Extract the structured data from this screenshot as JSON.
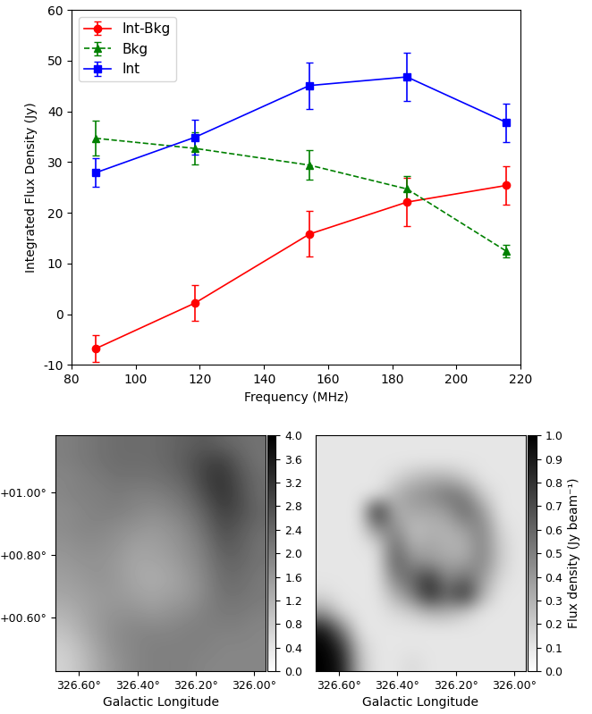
{
  "chart_data": [
    {
      "type": "line",
      "x_label": "Frequency (MHz)",
      "y_label": "Integrated Flux Density (Jy)",
      "x": [
        87.5,
        118.5,
        154.2,
        184.6,
        215.7
      ],
      "series": [
        {
          "name": "Int-Bkg",
          "color": "red",
          "marker": "o",
          "line_style": "solid",
          "values": [
            -6.8,
            2.2,
            15.8,
            22.1,
            25.4
          ],
          "errors": [
            2.7,
            3.5,
            4.5,
            4.8,
            3.8
          ]
        },
        {
          "name": "Bkg",
          "color": "green",
          "marker": "^",
          "line_style": "dashed",
          "values": [
            34.7,
            32.7,
            29.4,
            24.7,
            12.4
          ],
          "errors": [
            3.4,
            3.2,
            2.9,
            2.5,
            1.2
          ]
        },
        {
          "name": "Int",
          "color": "blue",
          "marker": "s",
          "line_style": "solid",
          "values": [
            27.9,
            34.9,
            45.1,
            46.8,
            37.8
          ],
          "errors": [
            2.8,
            3.5,
            4.6,
            4.7,
            3.8
          ]
        }
      ],
      "xlim": [
        80,
        220
      ],
      "xticks": [
        80,
        100,
        120,
        140,
        160,
        180,
        200,
        220
      ],
      "ylim": [
        -10,
        60
      ],
      "yticks": [
        -10,
        0,
        10,
        20,
        30,
        40,
        50,
        60
      ],
      "legend": "upper left"
    },
    {
      "type": "heatmap",
      "x_label": "Galactic Longitude",
      "xlim": [
        326.68,
        325.96
      ],
      "xticks": [
        {
          "value": 326.6,
          "label": "326.60°"
        },
        {
          "value": 326.4,
          "label": "326.40°"
        },
        {
          "value": 326.2,
          "label": "326.20°"
        },
        {
          "value": 326.0,
          "label": "326.00°"
        }
      ],
      "ylim": [
        0.43,
        1.18
      ],
      "yticks": [
        {
          "value": 0.6,
          "label": "+00.60°"
        },
        {
          "value": 0.8,
          "label": "+00.80°"
        },
        {
          "value": 1.0,
          "label": "+01.00°"
        }
      ],
      "colorbar_range": [
        0.0,
        4.0
      ],
      "colorbar_ticks": [
        0.0,
        0.4,
        0.8,
        1.2,
        1.6,
        2.0,
        2.4,
        2.8,
        3.2,
        3.6,
        4.0
      ],
      "cells": [
        [
          2.0,
          2.1,
          2.2,
          2.3,
          2.3,
          2.3,
          2.4,
          2.5,
          2.6,
          2.4,
          2.3,
          2.2
        ],
        [
          2.0,
          2.1,
          2.2,
          2.3,
          2.3,
          2.3,
          2.4,
          2.6,
          2.9,
          3.0,
          2.5,
          2.2
        ],
        [
          1.9,
          2.0,
          2.1,
          2.2,
          2.2,
          2.2,
          2.3,
          2.5,
          3.0,
          3.2,
          2.7,
          2.3
        ],
        [
          1.9,
          2.0,
          2.0,
          2.1,
          2.0,
          2.0,
          2.1,
          2.3,
          2.8,
          3.2,
          2.8,
          2.3
        ],
        [
          1.8,
          1.9,
          2.0,
          2.0,
          1.9,
          1.8,
          1.9,
          2.1,
          2.5,
          3.0,
          2.8,
          2.4
        ],
        [
          1.8,
          1.9,
          1.9,
          1.8,
          1.7,
          1.6,
          1.7,
          1.9,
          2.3,
          2.8,
          2.6,
          2.3
        ],
        [
          1.7,
          1.8,
          1.8,
          1.7,
          1.5,
          1.5,
          1.6,
          1.8,
          2.1,
          2.6,
          2.5,
          2.2
        ],
        [
          1.6,
          1.7,
          1.7,
          1.6,
          1.4,
          1.4,
          1.5,
          1.7,
          2.0,
          2.4,
          2.4,
          2.2
        ],
        [
          1.5,
          1.6,
          1.7,
          1.6,
          1.4,
          1.3,
          1.4,
          1.6,
          1.9,
          2.3,
          2.3,
          2.1
        ],
        [
          1.4,
          1.5,
          1.6,
          1.6,
          1.5,
          1.4,
          1.5,
          1.6,
          1.9,
          2.2,
          2.2,
          2.1
        ],
        [
          1.2,
          1.4,
          1.6,
          1.7,
          1.7,
          1.6,
          1.7,
          1.8,
          2.0,
          2.1,
          2.1,
          2.0
        ],
        [
          1.0,
          1.3,
          1.6,
          1.8,
          1.9,
          1.9,
          1.9,
          2.0,
          2.0,
          2.0,
          2.0,
          1.9
        ],
        [
          0.8,
          1.1,
          1.5,
          1.8,
          1.9,
          2.0,
          2.0,
          2.0,
          2.0,
          1.9,
          1.9,
          1.9
        ],
        [
          0.7,
          1.0,
          1.4,
          1.7,
          1.9,
          2.0,
          2.0,
          2.0,
          1.9,
          1.9,
          1.9,
          1.9
        ]
      ]
    },
    {
      "type": "heatmap",
      "x_label": "Galactic Longitude",
      "tick_labels": "x",
      "xlim": [
        326.68,
        325.96
      ],
      "xticks": [
        {
          "value": 326.6,
          "label": "326.60°"
        },
        {
          "value": 326.4,
          "label": "326.40°"
        },
        {
          "value": 326.2,
          "label": "326.20°"
        },
        {
          "value": 326.0,
          "label": "326.00°"
        }
      ],
      "ylim": [
        0.43,
        1.18
      ],
      "colorbar_label": "Flux density (Jy beam⁻¹)",
      "colorbar_range": [
        0.0,
        1.0
      ],
      "colorbar_ticks": [
        0.0,
        0.1,
        0.2,
        0.3,
        0.4,
        0.5,
        0.6,
        0.7,
        0.8,
        0.9,
        1.0
      ],
      "cells": [
        [
          0.1,
          0.1,
          0.1,
          0.1,
          0.1,
          0.1,
          0.1,
          0.1,
          0.1,
          0.1,
          0.1,
          0.1
        ],
        [
          0.1,
          0.1,
          0.1,
          0.1,
          0.1,
          0.1,
          0.1,
          0.1,
          0.1,
          0.1,
          0.1,
          0.1
        ],
        [
          0.1,
          0.1,
          0.1,
          0.1,
          0.15,
          0.25,
          0.3,
          0.3,
          0.2,
          0.1,
          0.1,
          0.1
        ],
        [
          0.1,
          0.1,
          0.1,
          0.1,
          0.3,
          0.4,
          0.45,
          0.55,
          0.5,
          0.2,
          0.1,
          0.1
        ],
        [
          0.1,
          0.1,
          0.1,
          0.9,
          0.3,
          0.35,
          0.35,
          0.4,
          0.6,
          0.4,
          0.1,
          0.1
        ],
        [
          0.1,
          0.1,
          0.1,
          0.5,
          0.45,
          0.25,
          0.3,
          0.3,
          0.4,
          0.5,
          0.15,
          0.1
        ],
        [
          0.1,
          0.1,
          0.1,
          0.15,
          0.6,
          0.3,
          0.35,
          0.3,
          0.3,
          0.5,
          0.2,
          0.1
        ],
        [
          0.1,
          0.1,
          0.1,
          0.1,
          0.65,
          0.45,
          0.4,
          0.35,
          0.35,
          0.5,
          0.2,
          0.1
        ],
        [
          0.1,
          0.1,
          0.1,
          0.1,
          0.5,
          0.6,
          0.8,
          0.45,
          0.6,
          0.4,
          0.15,
          0.1
        ],
        [
          0.15,
          0.1,
          0.1,
          0.1,
          0.3,
          0.5,
          0.85,
          0.6,
          0.85,
          0.3,
          0.1,
          0.1
        ],
        [
          0.4,
          0.15,
          0.1,
          0.1,
          0.15,
          0.2,
          0.3,
          0.3,
          0.2,
          0.1,
          0.1,
          0.1
        ],
        [
          0.9,
          0.5,
          0.1,
          0.1,
          0.1,
          0.1,
          0.1,
          0.1,
          0.1,
          0.1,
          0.1,
          0.1
        ],
        [
          1.0,
          0.8,
          0.2,
          0.1,
          0.1,
          0.1,
          0.1,
          0.1,
          0.1,
          0.1,
          0.1,
          0.1
        ],
        [
          1.0,
          0.9,
          0.25,
          0.1,
          0.1,
          0.15,
          0.1,
          0.1,
          0.1,
          0.1,
          0.1,
          0.1
        ]
      ]
    }
  ]
}
